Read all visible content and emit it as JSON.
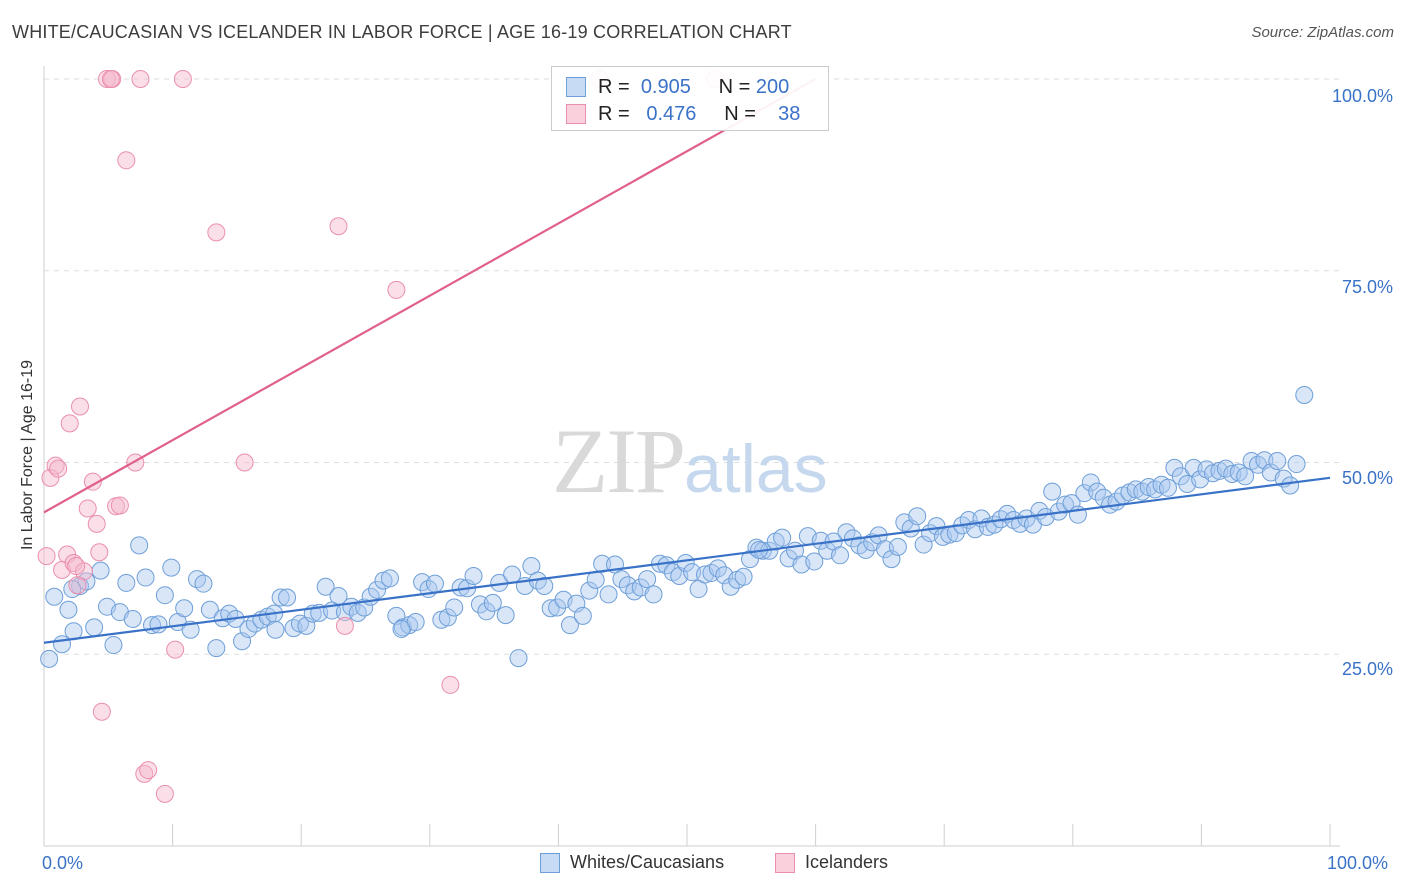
{
  "header": {
    "title": "WHITE/CAUCASIAN VS ICELANDER IN LABOR FORCE | AGE 16-19 CORRELATION CHART",
    "source": "Source: ZipAtlas.com"
  },
  "watermark": {
    "zip": "ZIP",
    "atlas": "atlas"
  },
  "legend": {
    "rows": [
      {
        "r_label": "R =",
        "r_value": "0.905",
        "n_label": "N =",
        "n_value": "200",
        "color": "#a9c8ef"
      },
      {
        "r_label": "R =",
        "r_value": "0.476",
        "n_label": "N =",
        "n_value": "38",
        "color": "#f5b8cb"
      }
    ]
  },
  "bottom_legend": [
    {
      "label": "Whites/Caucasians",
      "color": "#a9c8ef"
    },
    {
      "label": "Icelanders",
      "color": "#f5b8cb"
    }
  ],
  "axes": {
    "ylabel": "In Labor Force | Age 16-19",
    "y_ticks": [
      "100.0%",
      "75.0%",
      "50.0%",
      "25.0%"
    ],
    "x_ticks": [
      "0.0%",
      "100.0%"
    ]
  },
  "chart_data": {
    "type": "scatter",
    "title": "WHITE/CAUCASIAN VS ICELANDER IN LABOR FORCE | AGE 16-19 CORRELATION CHART",
    "xlabel": "",
    "ylabel": "In Labor Force | Age 16-19",
    "xlim": [
      0,
      100
    ],
    "ylim": [
      0,
      100
    ],
    "grid": true,
    "colors": {
      "blue": "#3a72c8",
      "blue_fill": "#a9c8ef",
      "pink": "#e0608a",
      "pink_fill": "#f5b8cb"
    },
    "series": [
      {
        "name": "Whites/Caucasians",
        "color": "#3a72c8",
        "trend": {
          "x": [
            0,
            100
          ],
          "y": [
            26.5,
            48
          ]
        },
        "points": [
          [
            0.4,
            24.4
          ],
          [
            0.8,
            32.5
          ],
          [
            1.4,
            26.3
          ],
          [
            1.9,
            30.8
          ],
          [
            2.3,
            28.0
          ],
          [
            2.8,
            33.9
          ],
          [
            3.3,
            34.5
          ],
          [
            3.9,
            28.5
          ],
          [
            4.4,
            35.9
          ],
          [
            4.9,
            31.2
          ],
          [
            5.4,
            26.2
          ],
          [
            5.9,
            30.5
          ],
          [
            6.4,
            34.3
          ],
          [
            6.9,
            29.6
          ],
          [
            7.4,
            39.2
          ],
          [
            7.9,
            35.0
          ],
          [
            8.4,
            28.8
          ],
          [
            8.9,
            28.9
          ],
          [
            9.4,
            32.7
          ],
          [
            9.9,
            36.3
          ],
          [
            10.4,
            29.2
          ],
          [
            10.9,
            31.0
          ],
          [
            11.4,
            28.2
          ],
          [
            11.9,
            34.8
          ],
          [
            12.4,
            34.2
          ],
          [
            12.9,
            30.8
          ],
          [
            13.4,
            25.8
          ],
          [
            13.9,
            29.7
          ],
          [
            14.4,
            30.3
          ],
          [
            14.9,
            29.6
          ],
          [
            15.4,
            26.7
          ],
          [
            15.9,
            28.3
          ],
          [
            16.4,
            29.0
          ],
          [
            16.9,
            29.5
          ],
          [
            17.4,
            29.9
          ],
          [
            17.9,
            30.3
          ],
          [
            18.4,
            32.4
          ],
          [
            18.9,
            32.4
          ],
          [
            19.4,
            28.4
          ],
          [
            19.9,
            29.0
          ],
          [
            20.4,
            28.7
          ],
          [
            20.9,
            30.3
          ],
          [
            21.4,
            30.4
          ],
          [
            21.9,
            33.8
          ],
          [
            22.4,
            30.7
          ],
          [
            22.9,
            32.6
          ],
          [
            23.4,
            30.5
          ],
          [
            23.9,
            31.2
          ],
          [
            24.4,
            30.4
          ],
          [
            24.9,
            31.1
          ],
          [
            25.4,
            32.5
          ],
          [
            25.9,
            33.4
          ],
          [
            26.4,
            34.6
          ],
          [
            26.9,
            34.9
          ],
          [
            27.4,
            30.0
          ],
          [
            27.9,
            28.5
          ],
          [
            28.4,
            28.8
          ],
          [
            28.9,
            29.2
          ],
          [
            29.4,
            34.4
          ],
          [
            29.9,
            33.5
          ],
          [
            30.4,
            34.2
          ],
          [
            30.9,
            29.5
          ],
          [
            31.4,
            29.8
          ],
          [
            31.9,
            31.1
          ],
          [
            32.4,
            33.7
          ],
          [
            32.9,
            33.6
          ],
          [
            33.4,
            35.2
          ],
          [
            33.9,
            31.5
          ],
          [
            34.4,
            30.6
          ],
          [
            34.9,
            31.7
          ],
          [
            35.4,
            34.3
          ],
          [
            35.9,
            30.1
          ],
          [
            36.4,
            35.4
          ],
          [
            36.9,
            24.5
          ],
          [
            37.4,
            33.9
          ],
          [
            37.9,
            36.5
          ],
          [
            38.4,
            34.6
          ],
          [
            38.9,
            33.9
          ],
          [
            39.4,
            31.0
          ],
          [
            39.9,
            31.1
          ],
          [
            40.4,
            32.1
          ],
          [
            40.9,
            28.8
          ],
          [
            41.4,
            31.6
          ],
          [
            41.9,
            30.0
          ],
          [
            42.4,
            33.3
          ],
          [
            42.9,
            34.7
          ],
          [
            43.4,
            36.8
          ],
          [
            43.9,
            32.8
          ],
          [
            44.4,
            36.7
          ],
          [
            44.9,
            34.8
          ],
          [
            45.4,
            34.0
          ],
          [
            45.9,
            33.2
          ],
          [
            46.4,
            33.7
          ],
          [
            46.9,
            34.8
          ],
          [
            47.4,
            32.8
          ],
          [
            47.9,
            36.8
          ],
          [
            48.4,
            36.6
          ],
          [
            48.9,
            35.7
          ],
          [
            49.4,
            35.2
          ],
          [
            49.9,
            36.9
          ],
          [
            50.4,
            35.7
          ],
          [
            50.9,
            33.5
          ],
          [
            51.4,
            35.4
          ],
          [
            51.9,
            35.6
          ],
          [
            52.4,
            36.2
          ],
          [
            52.9,
            35.3
          ],
          [
            53.4,
            33.8
          ],
          [
            53.9,
            34.7
          ],
          [
            54.4,
            35.1
          ],
          [
            54.9,
            37.4
          ],
          [
            55.4,
            38.9
          ],
          [
            55.9,
            38.5
          ],
          [
            56.4,
            38.5
          ],
          [
            56.9,
            39.7
          ],
          [
            57.4,
            40.2
          ],
          [
            57.9,
            37.5
          ],
          [
            58.4,
            38.5
          ],
          [
            58.9,
            36.7
          ],
          [
            59.4,
            40.4
          ],
          [
            59.9,
            37.1
          ],
          [
            60.4,
            39.8
          ],
          [
            60.9,
            38.5
          ],
          [
            61.4,
            39.7
          ],
          [
            61.9,
            37.9
          ],
          [
            62.4,
            40.9
          ],
          [
            62.9,
            40.1
          ],
          [
            63.4,
            39.2
          ],
          [
            63.9,
            38.6
          ],
          [
            64.4,
            39.6
          ],
          [
            64.9,
            40.5
          ],
          [
            65.4,
            38.7
          ],
          [
            65.9,
            37.4
          ],
          [
            66.4,
            39.0
          ],
          [
            66.9,
            42.2
          ],
          [
            67.4,
            41.4
          ],
          [
            67.9,
            43.0
          ],
          [
            68.4,
            39.3
          ],
          [
            68.9,
            40.8
          ],
          [
            69.4,
            41.7
          ],
          [
            69.9,
            40.3
          ],
          [
            70.4,
            40.6
          ],
          [
            70.9,
            40.8
          ],
          [
            71.4,
            41.8
          ],
          [
            71.9,
            42.5
          ],
          [
            72.4,
            41.3
          ],
          [
            72.9,
            42.7
          ],
          [
            73.4,
            41.6
          ],
          [
            73.9,
            41.9
          ],
          [
            74.4,
            42.6
          ],
          [
            74.9,
            43.3
          ],
          [
            75.4,
            42.5
          ],
          [
            75.9,
            42.0
          ],
          [
            76.4,
            42.7
          ],
          [
            76.9,
            41.9
          ],
          [
            77.4,
            43.7
          ],
          [
            77.9,
            42.9
          ],
          [
            78.4,
            46.2
          ],
          [
            78.9,
            43.6
          ],
          [
            79.4,
            44.5
          ],
          [
            79.9,
            44.7
          ],
          [
            80.4,
            43.2
          ],
          [
            80.9,
            46.0
          ],
          [
            81.4,
            47.4
          ],
          [
            81.9,
            46.2
          ],
          [
            82.4,
            45.4
          ],
          [
            82.9,
            44.5
          ],
          [
            83.4,
            44.9
          ],
          [
            83.9,
            45.7
          ],
          [
            84.4,
            46.1
          ],
          [
            84.9,
            46.5
          ],
          [
            85.4,
            46.2
          ],
          [
            85.9,
            46.8
          ],
          [
            86.4,
            46.5
          ],
          [
            86.9,
            47.1
          ],
          [
            87.4,
            46.7
          ],
          [
            87.9,
            49.3
          ],
          [
            88.4,
            48.2
          ],
          [
            88.9,
            47.2
          ],
          [
            89.4,
            49.3
          ],
          [
            89.9,
            47.8
          ],
          [
            90.4,
            49.1
          ],
          [
            90.9,
            48.6
          ],
          [
            91.4,
            48.9
          ],
          [
            91.9,
            49.2
          ],
          [
            92.4,
            48.5
          ],
          [
            92.9,
            48.7
          ],
          [
            93.4,
            48.2
          ],
          [
            93.9,
            50.2
          ],
          [
            94.4,
            49.7
          ],
          [
            94.9,
            50.3
          ],
          [
            95.4,
            48.7
          ],
          [
            95.9,
            50.2
          ],
          [
            96.4,
            47.9
          ],
          [
            96.9,
            47.0
          ],
          [
            97.4,
            49.8
          ],
          [
            98.0,
            58.8
          ],
          [
            2.2,
            33.5
          ],
          [
            27.8,
            28.3
          ],
          [
            55.6,
            38.6
          ],
          [
            18.0,
            28.2
          ]
        ]
      },
      {
        "name": "Icelanders",
        "color": "#e0608a",
        "trend": {
          "x": [
            0,
            60
          ],
          "y": [
            43.5,
            100
          ]
        },
        "points": [
          [
            0.2,
            37.8
          ],
          [
            0.5,
            48.0
          ],
          [
            0.9,
            49.6
          ],
          [
            1.1,
            49.2
          ],
          [
            1.4,
            36.0
          ],
          [
            1.8,
            38.0
          ],
          [
            2.0,
            55.1
          ],
          [
            2.3,
            36.9
          ],
          [
            2.8,
            57.3
          ],
          [
            3.1,
            35.8
          ],
          [
            3.4,
            44.0
          ],
          [
            3.8,
            47.5
          ],
          [
            4.1,
            42.0
          ],
          [
            4.3,
            38.3
          ],
          [
            4.5,
            17.5
          ],
          [
            4.9,
            100.0
          ],
          [
            5.3,
            100.0
          ],
          [
            5.6,
            44.3
          ],
          [
            5.9,
            44.4
          ],
          [
            6.4,
            89.4
          ],
          [
            7.1,
            50.0
          ],
          [
            7.5,
            100.0
          ],
          [
            7.8,
            9.4
          ],
          [
            8.1,
            9.9
          ],
          [
            9.4,
            6.8
          ],
          [
            10.2,
            25.6
          ],
          [
            10.8,
            100.0
          ],
          [
            13.4,
            80.0
          ],
          [
            15.6,
            50.0
          ],
          [
            22.9,
            80.8
          ],
          [
            23.4,
            28.7
          ],
          [
            27.4,
            72.5
          ],
          [
            31.6,
            21.0
          ],
          [
            2.6,
            34.0
          ],
          [
            5.2,
            100.0
          ],
          [
            52.2,
            100.0
          ],
          [
            43.2,
            100.0
          ],
          [
            2.5,
            36.5
          ]
        ]
      }
    ]
  }
}
